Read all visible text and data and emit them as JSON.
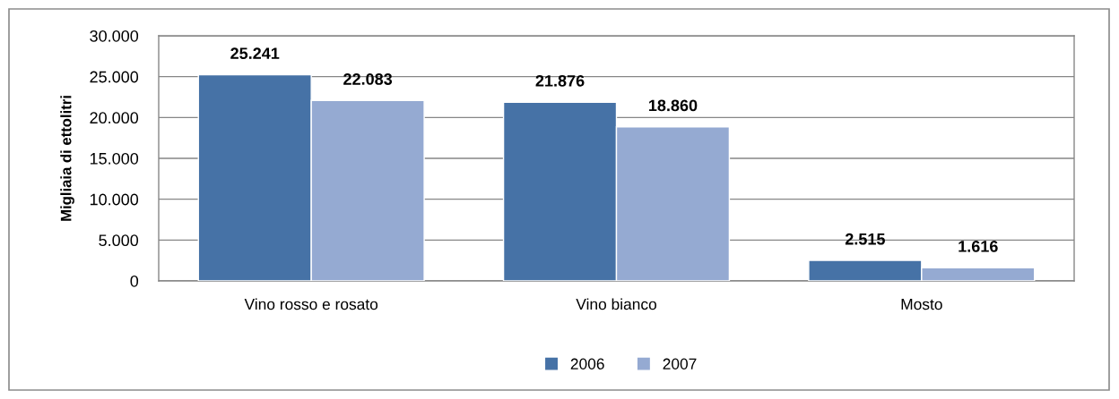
{
  "chart_data": {
    "type": "bar",
    "ylabel": "Migliaia di ettolitri",
    "categories": [
      "Vino rosso e rosato",
      "Vino bianco",
      "Mosto"
    ],
    "series": [
      {
        "name": "2006",
        "color": "#4672a6",
        "values": [
          25241,
          21876,
          2515
        ],
        "value_labels": [
          "25.241",
          "21.876",
          "2.515"
        ]
      },
      {
        "name": "2007",
        "color": "#95aad2",
        "values": [
          22083,
          18860,
          1616
        ],
        "value_labels": [
          "22.083",
          "18.860",
          "1.616"
        ]
      }
    ],
    "ylim": [
      0,
      30000
    ],
    "yticks": [
      {
        "value": 0,
        "label": "0"
      },
      {
        "value": 5000,
        "label": "5.000"
      },
      {
        "value": 10000,
        "label": "10.000"
      },
      {
        "value": 15000,
        "label": "15.000"
      },
      {
        "value": 20000,
        "label": "20.000"
      },
      {
        "value": 25000,
        "label": "25.000"
      },
      {
        "value": 30000,
        "label": "30.000"
      }
    ],
    "grid": "y",
    "legend": "bottom"
  }
}
